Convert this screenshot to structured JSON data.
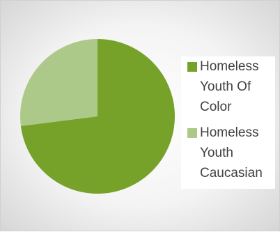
{
  "chart_data": {
    "type": "pie",
    "title": "",
    "categories": [
      "Homeless Youth Of Color",
      "Homeless Youth Caucasian"
    ],
    "values": [
      73,
      27
    ],
    "colors": [
      "#77a22a",
      "#acc98a"
    ],
    "legend": "right",
    "legend_entries": [
      {
        "lines": [
          "Homeless",
          "Youth Of",
          "Color"
        ],
        "color": "#77a22a"
      },
      {
        "lines": [
          "Homeless",
          "Youth",
          "Caucasian"
        ],
        "color": "#acc98a"
      }
    ]
  }
}
